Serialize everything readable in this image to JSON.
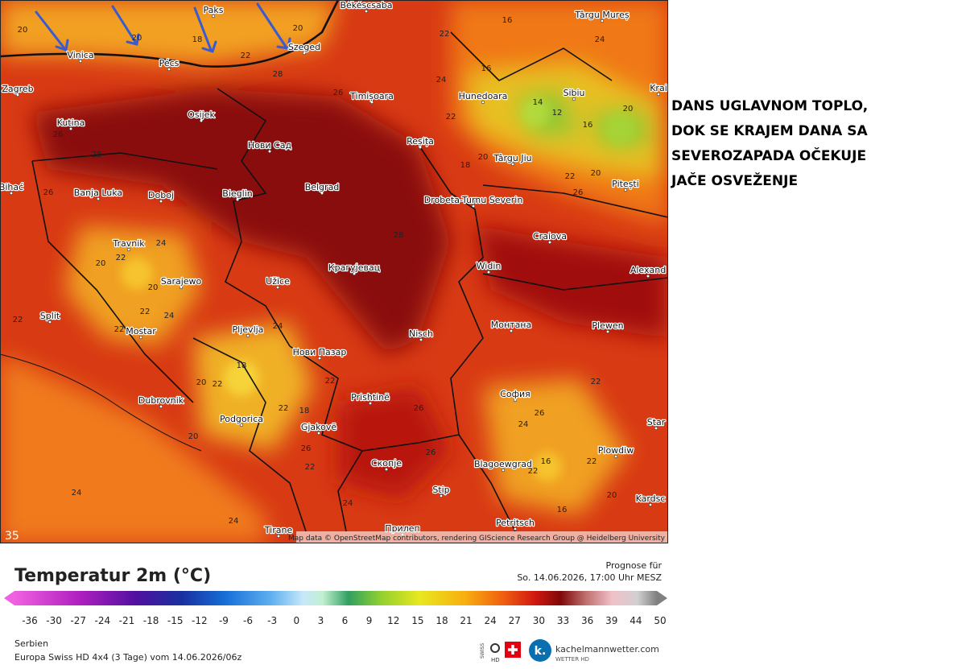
{
  "map": {
    "cities": [
      "Békéscsaba",
      "Paks",
      "Szeged",
      "Pécs",
      "Zagreb",
      "Osijek",
      "Kutina",
      "Timișoara",
      "Hunedoara",
      "Sibiu",
      "Târgu Mureș",
      "Нови Сад",
      "Reșița",
      "Târgu Jiu",
      "Banja Luka",
      "Doboj",
      "Bieglin",
      "Belgrad",
      "Drobeta-Turnu Severin",
      "Pitești",
      "Craiova",
      "Travnik",
      "Sarajewo",
      "Крагујевац",
      "Užice",
      "Widin",
      "Alexand",
      "Split",
      "Mostar",
      "Pljevlja",
      "Nisch",
      "Монтана",
      "Plewen",
      "Нови Пазар",
      "Dubrovnik",
      "Prishtinë",
      "София",
      "Podgorica",
      "Gjakovë",
      "Скопје",
      "Blagoewgrad",
      "Plowdiw",
      "Stip",
      "Petritsch",
      "Tirane",
      "Прилеп",
      "Kardsc",
      "Star",
      "Krai",
      "Bihać",
      "Vinica"
    ],
    "temperatures": [
      20,
      20,
      18,
      20,
      22,
      28,
      22,
      16,
      24,
      16,
      14,
      12,
      16,
      20,
      18,
      20,
      22,
      26,
      20,
      22,
      24,
      26,
      28,
      26,
      24,
      22,
      20,
      20,
      22,
      22,
      24,
      18,
      20,
      22,
      24,
      22,
      18,
      22,
      26,
      28,
      26,
      22,
      24,
      26,
      16,
      22,
      24,
      26,
      22,
      20,
      22,
      24,
      24,
      16,
      20,
      22,
      26
    ],
    "corner_label": 35,
    "attribution": "Map data © OpenStreetMap contributors, rendering GIScience Research Group @ Heidelberg University"
  },
  "annotation": [
    "DANS UGLAVNOM TOPLO,",
    "DOK SE KRAJEM DANA SA",
    "SEVEROZAPADA OČEKUJE",
    "JAČE OSVEŽENJE"
  ],
  "legend": {
    "title": "Temperatur 2m (°C)",
    "ticks": [
      -36,
      -30,
      -27,
      -24,
      -21,
      -18,
      -15,
      -12,
      -9,
      -6,
      -3,
      0,
      3,
      6,
      9,
      12,
      15,
      18,
      21,
      24,
      27,
      30,
      33,
      36,
      39,
      44,
      50
    ]
  },
  "forecast": {
    "label": "Prognose für",
    "time": "So. 14.06.2026, 17:00 Uhr MESZ"
  },
  "footer": {
    "region": "Serbien",
    "model": "Europa Swiss HD 4x4 (3 Tage) vom 14.06.2026/06z"
  },
  "branding": {
    "swiss": "SWISS",
    "hd": "HD",
    "logo": "k.",
    "site": "kachelmannwetter.com",
    "subtitle": "WETTER HD"
  }
}
